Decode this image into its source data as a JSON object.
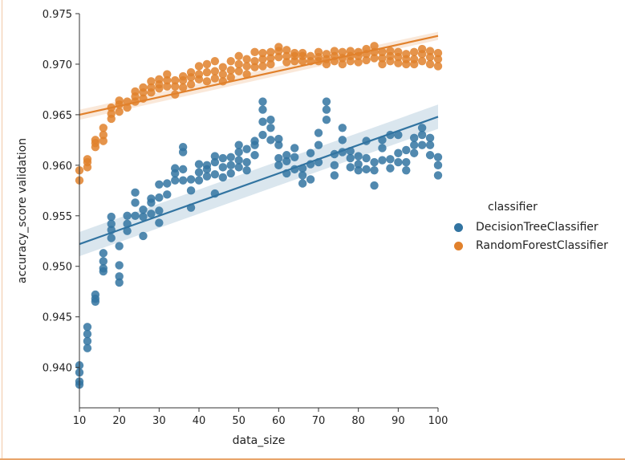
{
  "legend": {
    "title": "classifier",
    "entries": [
      {
        "label": "DecisionTreeClassifier",
        "color": "#3274a1"
      },
      {
        "label": "RandomForestClassifier",
        "color": "#e1812c"
      }
    ]
  },
  "chart_data": {
    "type": "scatter",
    "title": "",
    "xlabel": "data_size",
    "ylabel": "accuracy_score validation",
    "xlim": [
      10,
      100
    ],
    "ylim": [
      0.936,
      0.975
    ],
    "xticks": [
      10,
      20,
      30,
      40,
      50,
      60,
      70,
      80,
      90,
      100
    ],
    "yticks": [
      0.94,
      0.945,
      0.95,
      0.955,
      0.96,
      0.965,
      0.97,
      0.975
    ],
    "grid": false,
    "legend_position": "right",
    "series": [
      {
        "name": "DecisionTreeClassifier",
        "color": "#3274a1",
        "regression": {
          "x": [
            10,
            100
          ],
          "y": [
            0.9522,
            0.9648
          ],
          "ci_halfwidth": [
            0.0012,
            0.0012
          ]
        },
        "points": [
          [
            10,
            0.9383
          ],
          [
            10,
            0.9386
          ],
          [
            10,
            0.9395
          ],
          [
            10,
            0.9402
          ],
          [
            12,
            0.9419
          ],
          [
            12,
            0.9426
          ],
          [
            12,
            0.9433
          ],
          [
            12,
            0.944
          ],
          [
            14,
            0.9465
          ],
          [
            14,
            0.9468
          ],
          [
            14,
            0.9472
          ],
          [
            16,
            0.9495
          ],
          [
            16,
            0.9498
          ],
          [
            16,
            0.9505
          ],
          [
            16,
            0.9513
          ],
          [
            18,
            0.9528
          ],
          [
            18,
            0.9536
          ],
          [
            18,
            0.9542
          ],
          [
            18,
            0.9549
          ],
          [
            20,
            0.9484
          ],
          [
            20,
            0.949
          ],
          [
            20,
            0.9501
          ],
          [
            20,
            0.952
          ],
          [
            22,
            0.9535
          ],
          [
            22,
            0.9542
          ],
          [
            22,
            0.955
          ],
          [
            24,
            0.955
          ],
          [
            24,
            0.9563
          ],
          [
            24,
            0.9573
          ],
          [
            26,
            0.953
          ],
          [
            26,
            0.9549
          ],
          [
            26,
            0.9556
          ],
          [
            28,
            0.9552
          ],
          [
            28,
            0.9563
          ],
          [
            28,
            0.9567
          ],
          [
            30,
            0.9543
          ],
          [
            30,
            0.9555
          ],
          [
            30,
            0.9568
          ],
          [
            30,
            0.9581
          ],
          [
            32,
            0.9571
          ],
          [
            32,
            0.9582
          ],
          [
            34,
            0.9585
          ],
          [
            34,
            0.9592
          ],
          [
            34,
            0.9597
          ],
          [
            36,
            0.9585
          ],
          [
            36,
            0.9596
          ],
          [
            36,
            0.9613
          ],
          [
            36,
            0.9618
          ],
          [
            38,
            0.9558
          ],
          [
            38,
            0.9575
          ],
          [
            38,
            0.9586
          ],
          [
            40,
            0.9585
          ],
          [
            40,
            0.9593
          ],
          [
            40,
            0.9601
          ],
          [
            42,
            0.9589
          ],
          [
            42,
            0.9596
          ],
          [
            42,
            0.96
          ],
          [
            44,
            0.9572
          ],
          [
            44,
            0.9591
          ],
          [
            44,
            0.9603
          ],
          [
            44,
            0.9609
          ],
          [
            46,
            0.9588
          ],
          [
            46,
            0.9598
          ],
          [
            46,
            0.9607
          ],
          [
            48,
            0.9592
          ],
          [
            48,
            0.96
          ],
          [
            48,
            0.9608
          ],
          [
            50,
            0.9598
          ],
          [
            50,
            0.9605
          ],
          [
            50,
            0.9613
          ],
          [
            50,
            0.962
          ],
          [
            52,
            0.9595
          ],
          [
            52,
            0.9603
          ],
          [
            52,
            0.9616
          ],
          [
            54,
            0.961
          ],
          [
            54,
            0.962
          ],
          [
            54,
            0.9624
          ],
          [
            56,
            0.963
          ],
          [
            56,
            0.9643
          ],
          [
            56,
            0.9655
          ],
          [
            56,
            0.9663
          ],
          [
            58,
            0.9625
          ],
          [
            58,
            0.9637
          ],
          [
            58,
            0.9645
          ],
          [
            60,
            0.96
          ],
          [
            60,
            0.9607
          ],
          [
            60,
            0.962
          ],
          [
            60,
            0.9626
          ],
          [
            62,
            0.9592
          ],
          [
            62,
            0.9604
          ],
          [
            62,
            0.961
          ],
          [
            64,
            0.9596
          ],
          [
            64,
            0.9608
          ],
          [
            64,
            0.9617
          ],
          [
            66,
            0.9582
          ],
          [
            66,
            0.959
          ],
          [
            66,
            0.9597
          ],
          [
            68,
            0.9586
          ],
          [
            68,
            0.9601
          ],
          [
            68,
            0.9612
          ],
          [
            70,
            0.9603
          ],
          [
            70,
            0.962
          ],
          [
            70,
            0.9632
          ],
          [
            72,
            0.9645
          ],
          [
            72,
            0.9655
          ],
          [
            72,
            0.9663
          ],
          [
            74,
            0.959
          ],
          [
            74,
            0.96
          ],
          [
            74,
            0.9611
          ],
          [
            76,
            0.9613
          ],
          [
            76,
            0.9625
          ],
          [
            76,
            0.9637
          ],
          [
            78,
            0.9598
          ],
          [
            78,
            0.9607
          ],
          [
            78,
            0.9614
          ],
          [
            80,
            0.9595
          ],
          [
            80,
            0.9601
          ],
          [
            80,
            0.9609
          ],
          [
            82,
            0.9596
          ],
          [
            82,
            0.9607
          ],
          [
            82,
            0.9624
          ],
          [
            84,
            0.958
          ],
          [
            84,
            0.9595
          ],
          [
            84,
            0.9603
          ],
          [
            86,
            0.9605
          ],
          [
            86,
            0.9617
          ],
          [
            86,
            0.9625
          ],
          [
            88,
            0.9597
          ],
          [
            88,
            0.9606
          ],
          [
            88,
            0.963
          ],
          [
            90,
            0.9603
          ],
          [
            90,
            0.9612
          ],
          [
            90,
            0.963
          ],
          [
            92,
            0.9595
          ],
          [
            92,
            0.9603
          ],
          [
            92,
            0.9615
          ],
          [
            94,
            0.9612
          ],
          [
            94,
            0.962
          ],
          [
            94,
            0.9627
          ],
          [
            96,
            0.962
          ],
          [
            96,
            0.963
          ],
          [
            96,
            0.9637
          ],
          [
            98,
            0.961
          ],
          [
            98,
            0.962
          ],
          [
            98,
            0.9627
          ],
          [
            100,
            0.959
          ],
          [
            100,
            0.96
          ],
          [
            100,
            0.9608
          ]
        ]
      },
      {
        "name": "RandomForestClassifier",
        "color": "#e1812c",
        "regression": {
          "x": [
            10,
            100
          ],
          "y": [
            0.965,
            0.9728
          ],
          "ci_halfwidth": [
            0.0005,
            0.0004
          ]
        },
        "points": [
          [
            10,
            0.9585
          ],
          [
            10,
            0.9595
          ],
          [
            12,
            0.9598
          ],
          [
            12,
            0.9603
          ],
          [
            12,
            0.9606
          ],
          [
            14,
            0.9618
          ],
          [
            14,
            0.9622
          ],
          [
            14,
            0.9625
          ],
          [
            16,
            0.9624
          ],
          [
            16,
            0.963
          ],
          [
            16,
            0.9637
          ],
          [
            18,
            0.9646
          ],
          [
            18,
            0.9651
          ],
          [
            18,
            0.9657
          ],
          [
            20,
            0.9653
          ],
          [
            20,
            0.966
          ],
          [
            20,
            0.9664
          ],
          [
            22,
            0.9657
          ],
          [
            22,
            0.9663
          ],
          [
            24,
            0.9663
          ],
          [
            24,
            0.9668
          ],
          [
            24,
            0.9673
          ],
          [
            26,
            0.9666
          ],
          [
            26,
            0.9672
          ],
          [
            26,
            0.9677
          ],
          [
            28,
            0.9672
          ],
          [
            28,
            0.9677
          ],
          [
            28,
            0.9683
          ],
          [
            30,
            0.9676
          ],
          [
            30,
            0.968
          ],
          [
            30,
            0.9685
          ],
          [
            32,
            0.9678
          ],
          [
            32,
            0.9684
          ],
          [
            32,
            0.969
          ],
          [
            34,
            0.967
          ],
          [
            34,
            0.9678
          ],
          [
            34,
            0.9684
          ],
          [
            36,
            0.9677
          ],
          [
            36,
            0.9684
          ],
          [
            36,
            0.9688
          ],
          [
            38,
            0.968
          ],
          [
            38,
            0.9687
          ],
          [
            38,
            0.9692
          ],
          [
            40,
            0.9685
          ],
          [
            40,
            0.969
          ],
          [
            40,
            0.9698
          ],
          [
            42,
            0.9683
          ],
          [
            42,
            0.9692
          ],
          [
            42,
            0.97
          ],
          [
            44,
            0.9686
          ],
          [
            44,
            0.9693
          ],
          [
            44,
            0.9703
          ],
          [
            46,
            0.9683
          ],
          [
            46,
            0.969
          ],
          [
            46,
            0.9697
          ],
          [
            48,
            0.9687
          ],
          [
            48,
            0.9694
          ],
          [
            48,
            0.9703
          ],
          [
            50,
            0.9693
          ],
          [
            50,
            0.97
          ],
          [
            50,
            0.9708
          ],
          [
            52,
            0.969
          ],
          [
            52,
            0.9698
          ],
          [
            52,
            0.9705
          ],
          [
            54,
            0.9697
          ],
          [
            54,
            0.9703
          ],
          [
            54,
            0.9712
          ],
          [
            56,
            0.9698
          ],
          [
            56,
            0.9705
          ],
          [
            56,
            0.9711
          ],
          [
            58,
            0.97
          ],
          [
            58,
            0.9706
          ],
          [
            58,
            0.9712
          ],
          [
            60,
            0.9707
          ],
          [
            60,
            0.9713
          ],
          [
            60,
            0.9717
          ],
          [
            62,
            0.9702
          ],
          [
            62,
            0.9708
          ],
          [
            62,
            0.9714
          ],
          [
            64,
            0.9703
          ],
          [
            64,
            0.9708
          ],
          [
            64,
            0.9711
          ],
          [
            66,
            0.9703
          ],
          [
            66,
            0.9708
          ],
          [
            66,
            0.9711
          ],
          [
            68,
            0.9703
          ],
          [
            68,
            0.9708
          ],
          [
            70,
            0.9703
          ],
          [
            70,
            0.9707
          ],
          [
            70,
            0.9712
          ],
          [
            72,
            0.97
          ],
          [
            72,
            0.9705
          ],
          [
            72,
            0.971
          ],
          [
            74,
            0.9703
          ],
          [
            74,
            0.9708
          ],
          [
            74,
            0.9713
          ],
          [
            76,
            0.97
          ],
          [
            76,
            0.9706
          ],
          [
            76,
            0.9712
          ],
          [
            78,
            0.9703
          ],
          [
            78,
            0.9708
          ],
          [
            78,
            0.9713
          ],
          [
            80,
            0.9702
          ],
          [
            80,
            0.9708
          ],
          [
            80,
            0.9712
          ],
          [
            82,
            0.9704
          ],
          [
            82,
            0.971
          ],
          [
            82,
            0.9715
          ],
          [
            84,
            0.9706
          ],
          [
            84,
            0.9712
          ],
          [
            84,
            0.9718
          ],
          [
            86,
            0.97
          ],
          [
            86,
            0.9706
          ],
          [
            86,
            0.9712
          ],
          [
            88,
            0.9703
          ],
          [
            88,
            0.9708
          ],
          [
            88,
            0.9713
          ],
          [
            90,
            0.9701
          ],
          [
            90,
            0.9707
          ],
          [
            90,
            0.9712
          ],
          [
            92,
            0.97
          ],
          [
            92,
            0.9705
          ],
          [
            92,
            0.971
          ],
          [
            94,
            0.97
          ],
          [
            94,
            0.9705
          ],
          [
            94,
            0.9712
          ],
          [
            96,
            0.9703
          ],
          [
            96,
            0.971
          ],
          [
            96,
            0.9715
          ],
          [
            98,
            0.97
          ],
          [
            98,
            0.9707
          ],
          [
            98,
            0.9713
          ],
          [
            100,
            0.9698
          ],
          [
            100,
            0.9705
          ],
          [
            100,
            0.9711
          ]
        ]
      }
    ]
  }
}
